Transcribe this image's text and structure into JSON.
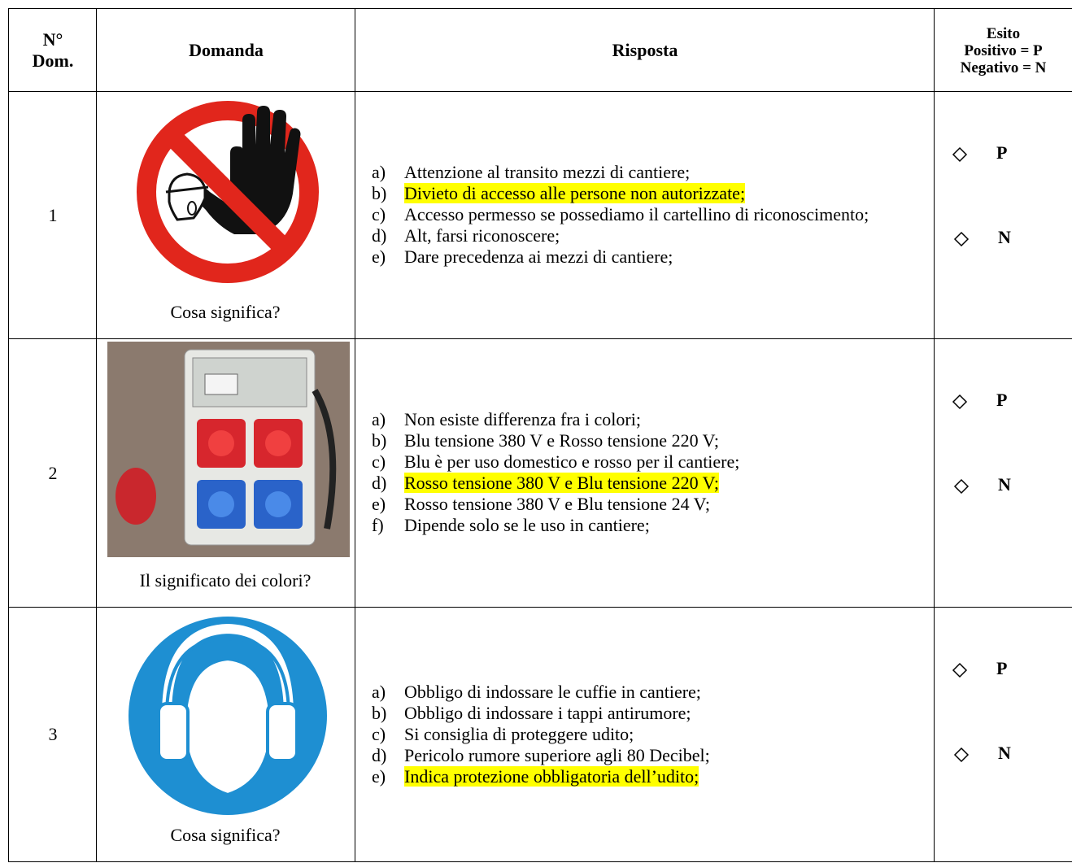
{
  "header": {
    "number": [
      "N°",
      "Dom."
    ],
    "question": "Domanda",
    "answer": "Risposta",
    "outcome": [
      "Esito",
      "Positivo = P",
      "Negativo = N"
    ]
  },
  "rows": [
    {
      "number": "1",
      "question": "Cosa significa?",
      "answers": [
        {
          "marker": "a)",
          "text": "Attenzione al transito mezzi di cantiere;"
        },
        {
          "marker": "b)",
          "text": "Divieto di accesso alle persone non autorizzate;",
          "highlight": true
        },
        {
          "marker": "c)",
          "text": "Accesso permesso se possediamo il cartellino di riconoscimento;"
        },
        {
          "marker": "d)",
          "text": "Alt, farsi riconoscere;"
        },
        {
          "marker": "e)",
          "text": "Dare precedenza ai mezzi di cantiere;"
        }
      ],
      "outcome": [
        "P",
        "N"
      ]
    },
    {
      "number": "2",
      "question": "Il significato dei colori?",
      "answers": [
        {
          "marker": "a)",
          "text": "Non esiste differenza fra i colori;"
        },
        {
          "marker": "b)",
          "text": "Blu tensione 380 V e Rosso tensione 220 V;"
        },
        {
          "marker": "c)",
          "text": "Blu è per uso domestico e rosso per il cantiere;"
        },
        {
          "marker": "d)",
          "text": "Rosso tensione 380 V e Blu tensione 220 V;",
          "highlight": true
        },
        {
          "marker": "e)",
          "text": "Rosso tensione 380 V e Blu tensione 24 V;"
        },
        {
          "marker": "f)",
          "text": "Dipende solo se le uso in cantiere;"
        }
      ],
      "outcome": [
        "P",
        "N"
      ]
    },
    {
      "number": "3",
      "question": "Cosa significa?",
      "answers": [
        {
          "marker": "a)",
          "text": "Obbligo di indossare le cuffie in cantiere;"
        },
        {
          "marker": "b)",
          "text": "Obbligo di indossare i tappi antirumore;"
        },
        {
          "marker": "c)",
          "text": "Si consiglia di proteggere udito;"
        },
        {
          "marker": "d)",
          "text": "Pericolo rumore superiore agli 80 Decibel;"
        },
        {
          "marker": "e)",
          "text": "Indica protezione obbligatoria dell’udito;",
          "highlight": true
        }
      ],
      "outcome": [
        "P",
        "N"
      ]
    }
  ]
}
